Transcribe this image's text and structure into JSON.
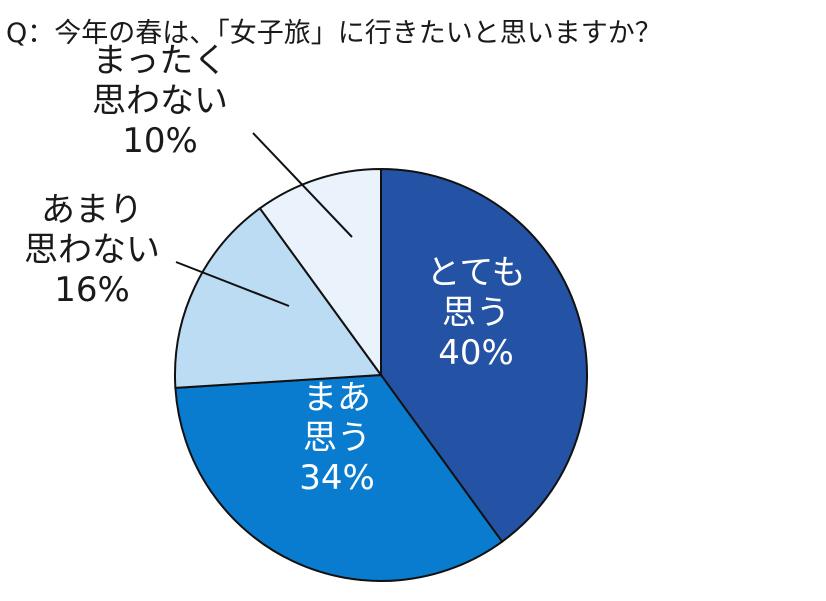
{
  "chart_data": {
    "type": "pie",
    "title": "Q：今年の春は、「女子旅」に行きたいと思いますか？",
    "unit": "%",
    "slices": [
      {
        "lines": [
          "とても",
          "思う"
        ],
        "value_label": "40%",
        "value": 40,
        "color": "#2453a5"
      },
      {
        "lines": [
          "まあ",
          "思う"
        ],
        "value_label": "34%",
        "value": 34,
        "color": "#0a7ccf"
      },
      {
        "lines": [
          "あまり",
          "思わない"
        ],
        "value_label": "16%",
        "value": 16,
        "color": "#bcdcf3"
      },
      {
        "lines": [
          "まったく",
          "思わない"
        ],
        "value_label": "10%",
        "value": 10,
        "color": "#eaf3fb"
      }
    ],
    "start_angle": "12 o'clock",
    "direction": "clockwise",
    "legend": "none"
  }
}
